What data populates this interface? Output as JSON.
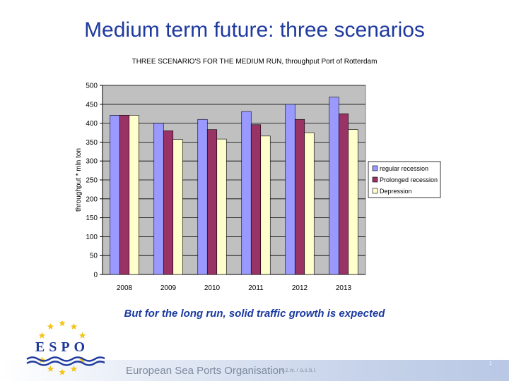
{
  "slide": {
    "title": "Medium term future: three scenarios",
    "tagline": "But for the long run, solid traffic growth is expected"
  },
  "footer": {
    "org": "European Sea Ports Organisation",
    "legal": "v.z.w. / a.s.b.l.",
    "page": "1",
    "logo_text": "ESPO"
  },
  "colors": {
    "title": "#1f3a9e",
    "plot_bg": "#c0c0c0",
    "regular": "#9999ff",
    "prolonged": "#993366",
    "depression": "#ffffcc"
  },
  "chart_data": {
    "type": "bar",
    "title": "THREE SCENARIO'S FOR THE MEDIUM RUN, throughput Port of Rotterdam",
    "xlabel": "",
    "ylabel": "throughput * mln ton",
    "ylim": [
      0,
      500
    ],
    "yticks": [
      0,
      50,
      100,
      150,
      200,
      250,
      300,
      350,
      400,
      450,
      500
    ],
    "grid": true,
    "legend_position": "right",
    "categories": [
      "2008",
      "2009",
      "2010",
      "2011",
      "2012",
      "2013"
    ],
    "series": [
      {
        "name": "regular recession",
        "values": [
          421,
          400,
          410,
          431,
          450,
          469
        ]
      },
      {
        "name": "Prolonged recession",
        "values": [
          421,
          380,
          383,
          396,
          410,
          425
        ]
      },
      {
        "name": "Depression",
        "values": [
          421,
          357,
          358,
          366,
          375,
          383
        ]
      }
    ]
  }
}
